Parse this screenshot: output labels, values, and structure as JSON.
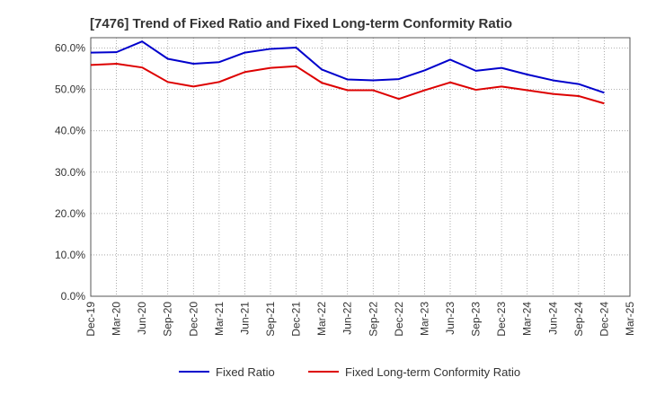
{
  "chart_data": {
    "type": "line",
    "title": "[7476]  Trend of Fixed Ratio and Fixed Long-term Conformity Ratio",
    "xlabel": "",
    "ylabel": "",
    "ylim": [
      0,
      62.5
    ],
    "y_ticks": [
      "0.0%",
      "10.0%",
      "20.0%",
      "30.0%",
      "40.0%",
      "50.0%",
      "60.0%"
    ],
    "y_tick_values": [
      0,
      10,
      20,
      30,
      40,
      50,
      60
    ],
    "categories": [
      "Dec-19",
      "Mar-20",
      "Jun-20",
      "Sep-20",
      "Dec-20",
      "Mar-21",
      "Jun-21",
      "Sep-21",
      "Dec-21",
      "Mar-22",
      "Jun-22",
      "Sep-22",
      "Dec-22",
      "Mar-23",
      "Jun-23",
      "Sep-23",
      "Dec-23",
      "Mar-24",
      "Jun-24",
      "Sep-24",
      "Dec-24",
      "Mar-25"
    ],
    "grid": true,
    "legend_position": "bottom",
    "series": [
      {
        "name": "Fixed Ratio",
        "color": "#0000cc",
        "values": [
          58.9,
          59.0,
          61.6,
          57.4,
          56.2,
          56.6,
          58.9,
          59.8,
          60.1,
          54.8,
          52.4,
          52.2,
          52.5,
          54.6,
          57.2,
          54.5,
          55.2,
          53.6,
          52.2,
          51.3,
          49.2,
          null
        ]
      },
      {
        "name": "Fixed Long-term Conformity Ratio",
        "color": "#dd0000",
        "values": [
          55.9,
          56.2,
          55.3,
          51.8,
          50.7,
          51.8,
          54.2,
          55.2,
          55.6,
          51.6,
          49.8,
          49.8,
          47.7,
          49.8,
          51.7,
          49.9,
          50.7,
          49.8,
          48.9,
          48.4,
          46.6,
          null
        ]
      }
    ]
  }
}
